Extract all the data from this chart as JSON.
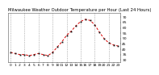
{
  "title": "Milwaukee Weather Outdoor Temperature per Hour (Last 24 Hours)",
  "hours": [
    0,
    1,
    2,
    3,
    4,
    5,
    6,
    7,
    8,
    9,
    10,
    11,
    12,
    13,
    14,
    15,
    16,
    17,
    18,
    19,
    20,
    21,
    22,
    23
  ],
  "temps": [
    37,
    36,
    35,
    35,
    34,
    35,
    36,
    35,
    34,
    37,
    42,
    47,
    53,
    57,
    62,
    66,
    68,
    67,
    63,
    56,
    50,
    46,
    44,
    43
  ],
  "line_color": "#dd0000",
  "marker_color": "#111111",
  "bg_color": "#ffffff",
  "grid_color": "#888888",
  "title_color": "#000000",
  "ylim_min": 28,
  "ylim_max": 74,
  "ytick_vals": [
    30,
    35,
    40,
    45,
    50,
    55,
    60,
    65,
    70
  ],
  "ytick_labels": [
    "30",
    "35",
    "40",
    "45",
    "50",
    "55",
    "60",
    "65",
    "70"
  ],
  "grid_hours": [
    0,
    3,
    6,
    9,
    12,
    15,
    18,
    21
  ],
  "title_fontsize": 3.8,
  "tick_fontsize": 3.2
}
